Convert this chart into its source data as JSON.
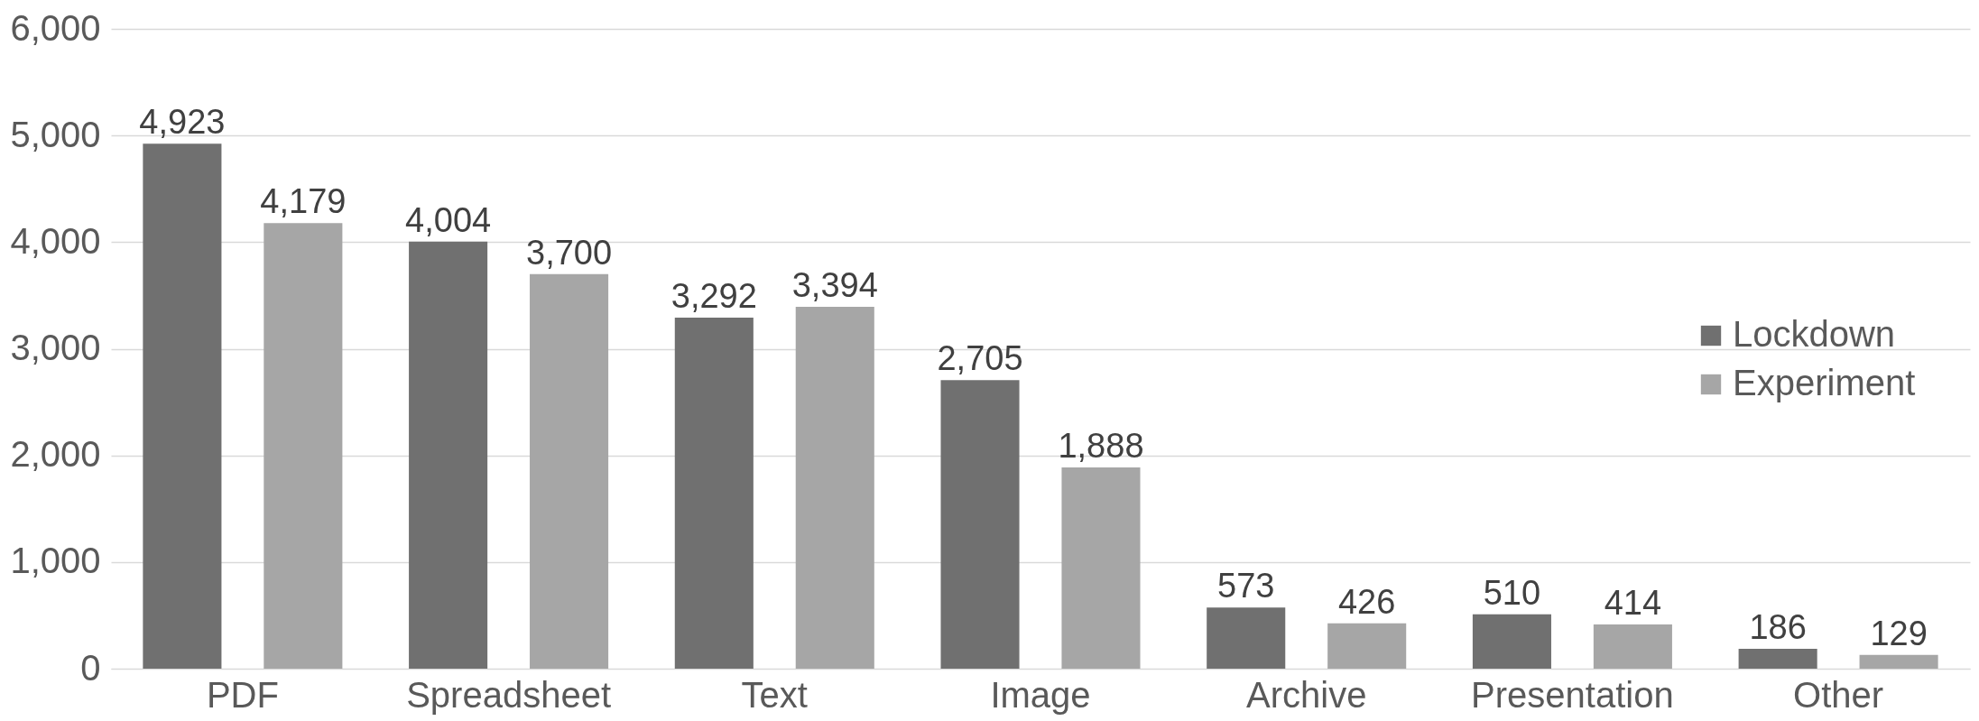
{
  "chart_data": {
    "type": "bar",
    "categories": [
      "PDF",
      "Spreadsheet",
      "Text",
      "Image",
      "Archive",
      "Presentation",
      "Other"
    ],
    "series": [
      {
        "name": "Lockdown",
        "color": "#707070",
        "values": [
          4923,
          4004,
          3292,
          2705,
          573,
          510,
          186
        ],
        "value_labels": [
          "4,923",
          "4,004",
          "3,292",
          "2,705",
          "573",
          "510",
          "186"
        ]
      },
      {
        "name": "Experiment",
        "color": "#a6a6a6",
        "values": [
          4179,
          3700,
          3394,
          1888,
          426,
          414,
          129
        ],
        "value_labels": [
          "4,179",
          "3,700",
          "3,394",
          "1,888",
          "426",
          "414",
          "129"
        ]
      }
    ],
    "ylim": [
      0,
      6000
    ],
    "yticks": [
      0,
      {
        "value": 1000,
        "label": "1,000"
      },
      {
        "value": 2000,
        "label": "2,000"
      },
      {
        "value": 3000,
        "label": "3,000"
      },
      {
        "value": 4000,
        "label": "4,000"
      },
      {
        "value": 5000,
        "label": "5,000"
      },
      {
        "value": 6000,
        "label": "6,000"
      }
    ],
    "grid": "y",
    "legend": "right"
  }
}
